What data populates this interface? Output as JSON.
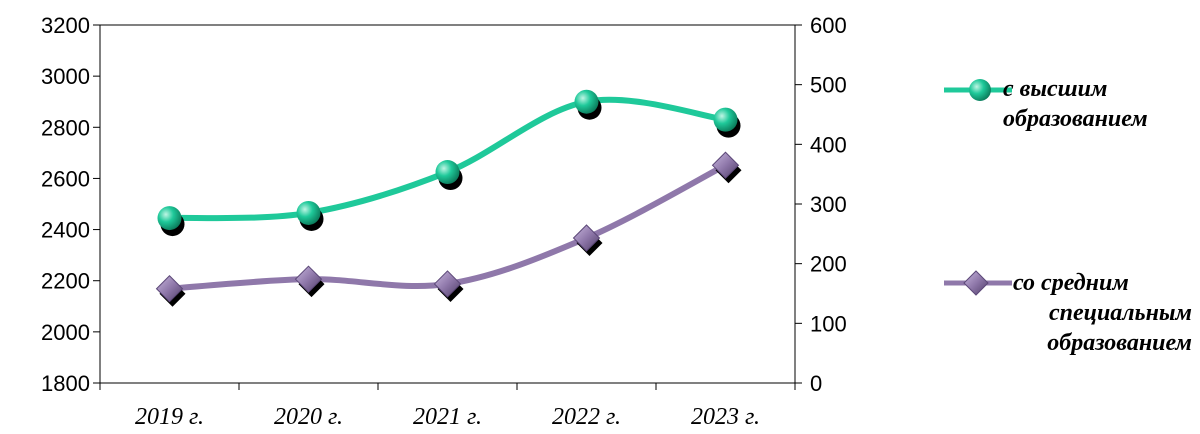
{
  "chart_data": {
    "type": "line",
    "categories": [
      "2019 г.",
      "2020 г.",
      "2021 г.",
      "2022 г.",
      "2023 г."
    ],
    "y_left": {
      "ylim": [
        1800,
        3200
      ],
      "ticks": [
        "1800",
        "2000",
        "2200",
        "2400",
        "2600",
        "2800",
        "3000",
        "3200"
      ]
    },
    "y_right": {
      "ylim": [
        0,
        600
      ],
      "ticks": [
        "0",
        "100",
        "200",
        "300",
        "400",
        "500",
        "600"
      ]
    },
    "series": [
      {
        "name": "с высшим образованием",
        "name_lines": [
          "с высшим",
          "образованием"
        ],
        "axis": "left",
        "values": [
          2445,
          2465,
          2625,
          2900,
          2830
        ],
        "color": "#1fc99a",
        "marker": "circle"
      },
      {
        "name": "со средним специальным образованием",
        "name_lines": [
          "со средним",
          "специальным",
          "образованием"
        ],
        "axis": "right",
        "values": [
          158,
          174,
          166,
          243,
          365
        ],
        "color": "#8f78aa",
        "marker": "diamond"
      }
    ],
    "legend_position": "right",
    "grid": false
  }
}
